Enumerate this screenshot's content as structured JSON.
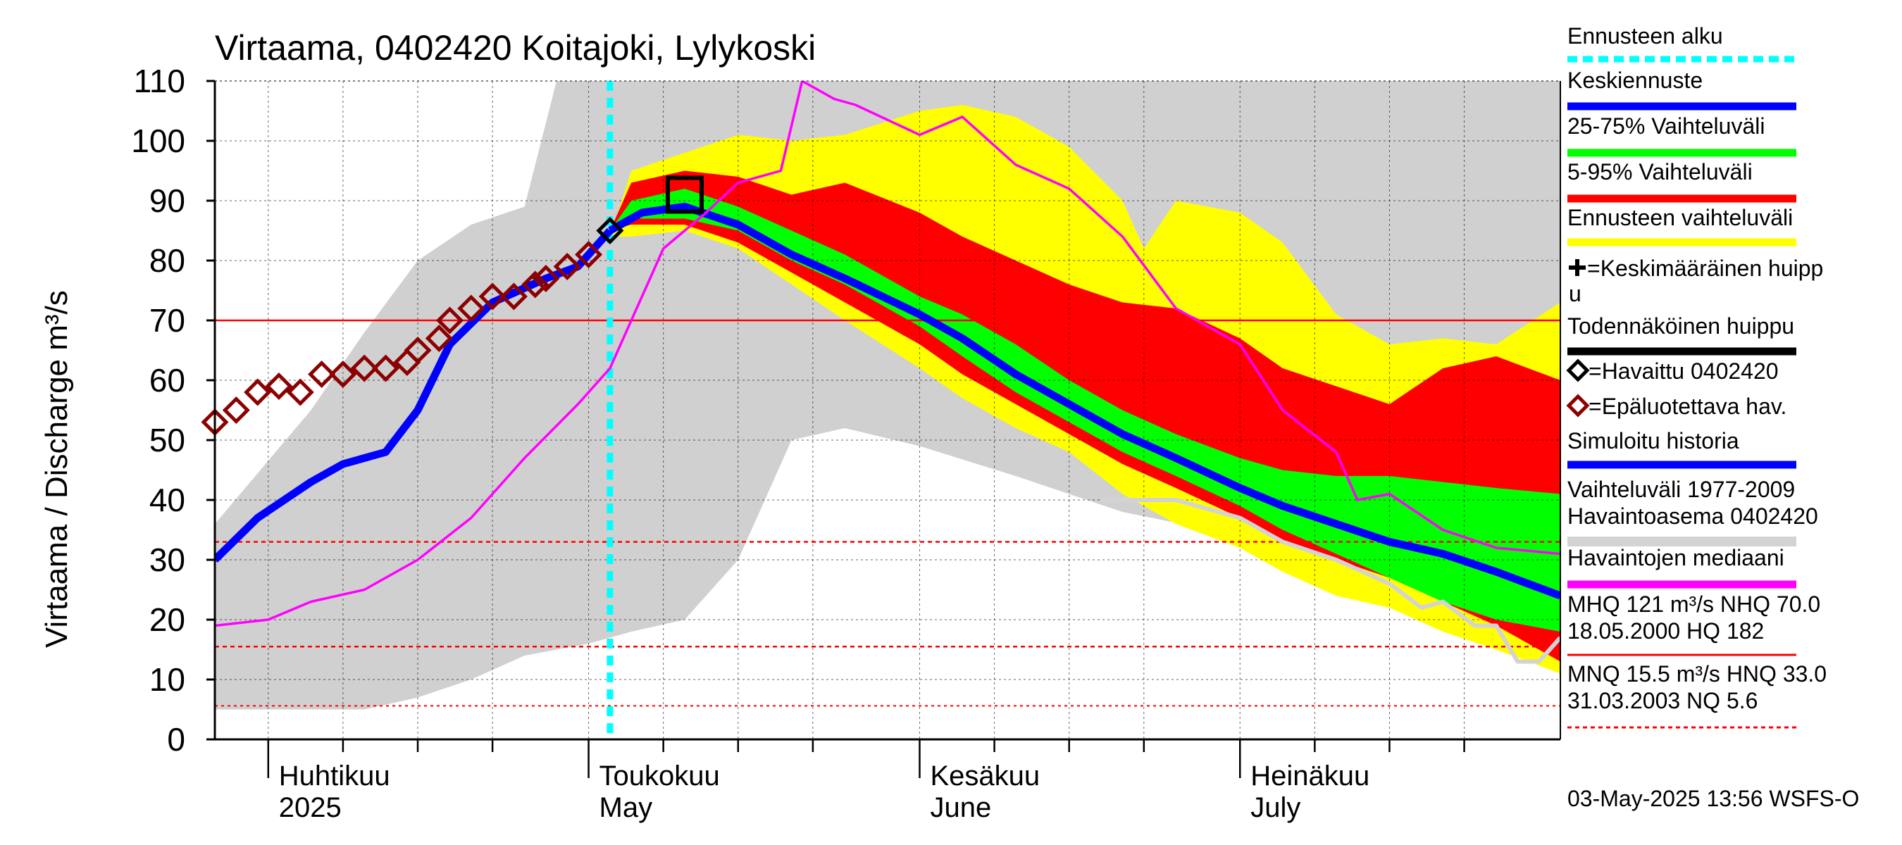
{
  "chart_data": {
    "type": "area",
    "title": "Virtaama, 0402420 Koitajoki, Lylykoski",
    "ylabel": "Virtaama / Discharge   m³/s",
    "ylim": [
      0,
      110
    ],
    "yticks": [
      0,
      10,
      20,
      30,
      40,
      50,
      60,
      70,
      80,
      90,
      100,
      110
    ],
    "xlim": [
      "2025-03-27",
      "2025-07-31"
    ],
    "grid": true,
    "months": [
      {
        "date": "2025-04-01",
        "fi": "Huhtikuu",
        "en": "2025"
      },
      {
        "date": "2025-05-01",
        "fi": "Toukokuu",
        "en": "May"
      },
      {
        "date": "2025-06-01",
        "fi": "Kesäkuu",
        "en": "June"
      },
      {
        "date": "2025-07-01",
        "fi": "Heinäkuu",
        "en": "July"
      }
    ],
    "forecast_start": "2025-05-03",
    "reference_lines": [
      {
        "label": "MHQ",
        "value": 121
      },
      {
        "label": "NHQ",
        "value": 70.0
      },
      {
        "label": "HNQ",
        "value": 33.0
      },
      {
        "label": "MNQ",
        "value": 15.5
      },
      {
        "label": "NQ",
        "value": 5.6
      }
    ],
    "series": [
      {
        "name": "Vaihteluväli 1977-2009 Havaintoasema 0402420",
        "kind": "band",
        "color": "#d0d0d0",
        "x": [
          "2025-03-27",
          "2025-04-05",
          "2025-04-10",
          "2025-04-15",
          "2025-04-20",
          "2025-04-25",
          "2025-04-28",
          "2025-05-01",
          "2025-05-03",
          "2025-05-05",
          "2025-05-10",
          "2025-05-15",
          "2025-05-20",
          "2025-05-25",
          "2025-06-01",
          "2025-06-10",
          "2025-06-20",
          "2025-07-01",
          "2025-07-10",
          "2025-07-20",
          "2025-07-31"
        ],
        "upper": [
          36,
          55,
          68,
          80,
          86,
          89,
          110,
          110,
          110,
          110,
          110,
          110,
          110,
          110,
          110,
          110,
          110,
          110,
          110,
          110,
          110
        ],
        "lower": [
          5,
          5,
          5,
          7,
          10,
          14,
          15,
          16,
          17,
          18,
          20,
          30,
          50,
          52,
          49,
          44,
          38,
          34,
          32,
          29,
          26
        ]
      },
      {
        "name": "Ennusteen vaihteluväli",
        "kind": "band",
        "color": "#ffff00",
        "x": [
          "2025-05-03",
          "2025-05-05",
          "2025-05-10",
          "2025-05-15",
          "2025-05-20",
          "2025-05-25",
          "2025-06-01",
          "2025-06-05",
          "2025-06-10",
          "2025-06-15",
          "2025-06-20",
          "2025-06-22",
          "2025-06-25",
          "2025-07-01",
          "2025-07-05",
          "2025-07-10",
          "2025-07-15",
          "2025-07-20",
          "2025-07-25",
          "2025-07-31"
        ],
        "upper": [
          84,
          95,
          98,
          101,
          100,
          101,
          105,
          106,
          104,
          99,
          90,
          82,
          90,
          88,
          83,
          71,
          66,
          67,
          66,
          73
        ],
        "lower": [
          84,
          84,
          85,
          82,
          76,
          70,
          62,
          57,
          52,
          48,
          41,
          39,
          36,
          32,
          28,
          24,
          22,
          18,
          15,
          11
        ]
      },
      {
        "name": "5-95% Vaihteluväli",
        "kind": "band",
        "color": "#ff0000",
        "x": [
          "2025-05-03",
          "2025-05-05",
          "2025-05-10",
          "2025-05-15",
          "2025-05-20",
          "2025-05-25",
          "2025-06-01",
          "2025-06-05",
          "2025-06-10",
          "2025-06-15",
          "2025-06-20",
          "2025-06-25",
          "2025-07-01",
          "2025-07-05",
          "2025-07-10",
          "2025-07-15",
          "2025-07-20",
          "2025-07-25",
          "2025-07-31"
        ],
        "upper": [
          85,
          93,
          95,
          94,
          91,
          93,
          88,
          84,
          80,
          76,
          73,
          72,
          67,
          62,
          59,
          56,
          62,
          64,
          60
        ],
        "lower": [
          85,
          86,
          86,
          83,
          78,
          73,
          66,
          61,
          56,
          51,
          46,
          42,
          37,
          33,
          30,
          27,
          23,
          19,
          13
        ]
      },
      {
        "name": "25-75% Vaihteluväli",
        "kind": "band",
        "color": "#00ff00",
        "x": [
          "2025-05-03",
          "2025-05-05",
          "2025-05-10",
          "2025-05-15",
          "2025-05-20",
          "2025-05-25",
          "2025-06-01",
          "2025-06-05",
          "2025-06-10",
          "2025-06-15",
          "2025-06-20",
          "2025-06-25",
          "2025-07-01",
          "2025-07-05",
          "2025-07-10",
          "2025-07-15",
          "2025-07-20",
          "2025-07-25",
          "2025-07-31"
        ],
        "upper": [
          85,
          90,
          92,
          89,
          85,
          81,
          74,
          71,
          66,
          60,
          55,
          51,
          47,
          45,
          44,
          44,
          43,
          42,
          41
        ],
        "lower": [
          85,
          87,
          87,
          85,
          80,
          76,
          69,
          64,
          58,
          53,
          48,
          44,
          39,
          35,
          31,
          27,
          23,
          20,
          18
        ]
      },
      {
        "name": "Havaintojen mediaani",
        "kind": "line",
        "color": "#d3d3d3",
        "x": [
          "2025-06-18",
          "2025-06-25",
          "2025-07-01",
          "2025-07-05",
          "2025-07-10",
          "2025-07-15",
          "2025-07-18",
          "2025-07-20",
          "2025-07-23",
          "2025-07-25",
          "2025-07-27",
          "2025-07-29",
          "2025-07-31"
        ],
        "values": [
          40,
          40,
          37,
          33,
          30,
          26,
          22,
          23,
          19,
          19,
          13,
          13,
          17
        ]
      },
      {
        "name": "Keskiennuste",
        "kind": "line",
        "color": "#0000ff",
        "x": [
          "2025-05-03",
          "2025-05-06",
          "2025-05-10",
          "2025-05-15",
          "2025-05-20",
          "2025-05-25",
          "2025-06-01",
          "2025-06-05",
          "2025-06-10",
          "2025-06-15",
          "2025-06-20",
          "2025-06-25",
          "2025-07-01",
          "2025-07-05",
          "2025-07-10",
          "2025-07-15",
          "2025-07-20",
          "2025-07-25",
          "2025-07-31"
        ],
        "values": [
          85,
          88,
          89,
          86,
          81,
          77,
          71,
          67,
          61,
          56,
          51,
          47,
          42,
          39,
          36,
          33,
          31,
          28,
          24
        ]
      },
      {
        "name": "Simuloitu historia",
        "kind": "line",
        "color": "#0000ff",
        "x": [
          "2025-03-27",
          "2025-03-31",
          "2025-04-05",
          "2025-04-08",
          "2025-04-12",
          "2025-04-15",
          "2025-04-18",
          "2025-04-22",
          "2025-04-27",
          "2025-04-30",
          "2025-05-03"
        ],
        "values": [
          30,
          37,
          43,
          46,
          48,
          55,
          66,
          73,
          77,
          79,
          85
        ]
      },
      {
        "name": "Magenta line",
        "kind": "line",
        "color": "#ff00ff",
        "x": [
          "2025-03-27",
          "2025-04-01",
          "2025-04-05",
          "2025-04-10",
          "2025-04-15",
          "2025-04-20",
          "2025-04-25",
          "2025-04-30",
          "2025-05-03",
          "2025-05-08",
          "2025-05-12",
          "2025-05-15",
          "2025-05-19",
          "2025-05-21",
          "2025-05-24",
          "2025-05-26",
          "2025-06-01",
          "2025-06-05",
          "2025-06-10",
          "2025-06-15",
          "2025-06-20",
          "2025-06-25",
          "2025-07-01",
          "2025-07-05",
          "2025-07-10",
          "2025-07-12",
          "2025-07-15",
          "2025-07-20",
          "2025-07-25",
          "2025-07-31"
        ],
        "values": [
          19,
          20,
          23,
          25,
          30,
          37,
          47,
          56,
          62,
          82,
          88,
          93,
          95,
          110,
          107,
          106,
          101,
          104,
          96,
          92,
          84,
          72,
          66,
          55,
          48,
          40,
          41,
          35,
          32,
          31
        ]
      },
      {
        "name": "Epäluotettava hav.",
        "kind": "markers",
        "color": "#8b0000",
        "x": [
          "2025-03-27",
          "2025-03-29",
          "2025-03-31",
          "2025-04-02",
          "2025-04-04",
          "2025-04-06",
          "2025-04-08",
          "2025-04-10",
          "2025-04-12",
          "2025-04-14",
          "2025-04-15",
          "2025-04-17",
          "2025-04-18",
          "2025-04-20",
          "2025-04-22",
          "2025-04-24",
          "2025-04-26",
          "2025-04-27",
          "2025-04-29",
          "2025-05-01"
        ],
        "values": [
          53,
          55,
          58,
          59,
          58,
          61,
          61,
          62,
          62,
          63,
          65,
          67,
          70,
          72,
          74,
          74,
          76,
          77,
          79,
          81
        ]
      },
      {
        "name": "Havaittu 0402420",
        "kind": "markers",
        "color": "#000000",
        "x": [
          "2025-05-03"
        ],
        "values": [
          85
        ]
      }
    ],
    "peak_box": {
      "x": "2025-05-10",
      "y": 91
    }
  },
  "legend": {
    "items": [
      {
        "label": "Ennusteen alku",
        "color": "#00ffff",
        "style": "dashed"
      },
      {
        "label": "Keskiennuste",
        "color": "#0000ff",
        "style": "line"
      },
      {
        "label": "25-75% Vaihteluväli",
        "color": "#00ff00",
        "style": "line"
      },
      {
        "label": "5-95% Vaihteluväli",
        "color": "#ff0000",
        "style": "line"
      },
      {
        "label": "Ennusteen vaihteluväli",
        "color": "#ffff00",
        "style": "line"
      },
      {
        "label": "=Keskimääräinen huipp",
        "label2": "u",
        "color": "#000000",
        "style": "plus"
      },
      {
        "label": "Todennäköinen huippu",
        "color": "#000000",
        "style": "line"
      },
      {
        "label": "=Havaittu 0402420",
        "color": "#000000",
        "style": "diamond"
      },
      {
        "label": "=Epäluotettava hav.",
        "color": "#8b0000",
        "style": "diamond"
      },
      {
        "label": "Simuloitu historia",
        "color": "#0000ff",
        "style": "line"
      },
      {
        "label": "Vaihteluväli 1977-2009",
        "label2": " Havaintoasema 0402420",
        "color": "#d3d3d3",
        "style": "line"
      },
      {
        "label": "Havaintojen mediaani",
        "color": "#ff00ff",
        "style": "line"
      },
      {
        "label": "MHQ  121 m³/s NHQ 70.0",
        "label2": "18.05.2000 HQ  182",
        "color": "#ff0000",
        "style": "thin"
      },
      {
        "label": "MNQ 15.5 m³/s HNQ 33.0",
        "label2": "31.03.2003 NQ  5.6",
        "color": "#ff0000",
        "style": "dashed-red"
      }
    ]
  },
  "footer": {
    "timestamp": "03-May-2025 13:56 WSFS-O"
  }
}
